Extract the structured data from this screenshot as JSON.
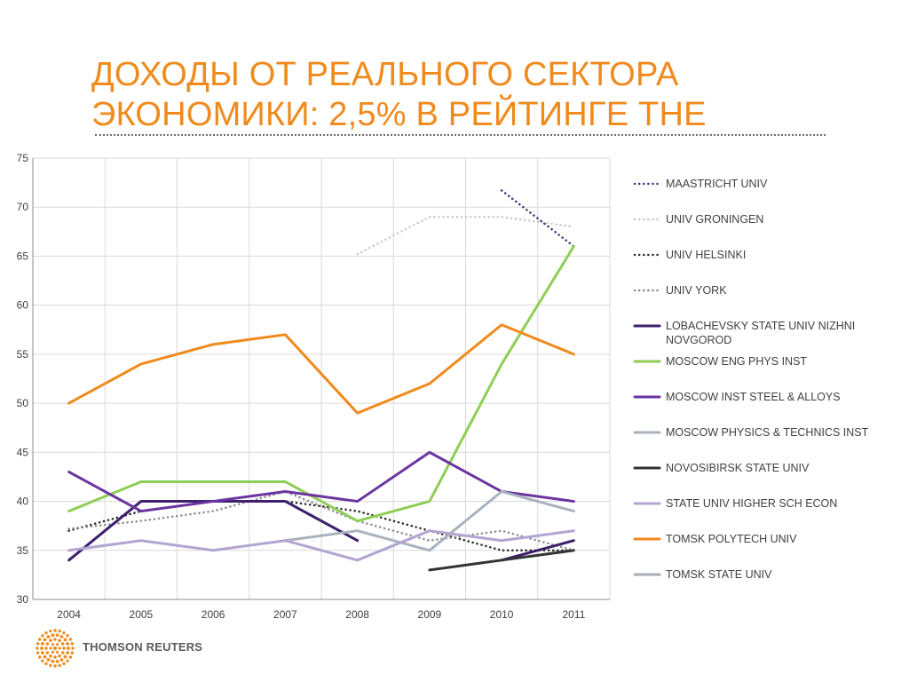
{
  "slide": {
    "title_line1": "ДОХОДЫ ОТ РЕАЛЬНОГО СЕКТОРА",
    "title_line2": "ЭКОНОМИКИ: 2,5% В РЕЙТИНГЕ THE",
    "logo_text": "THOMSON REUTERS",
    "accent_color": "#f08a1c"
  },
  "chart_data": {
    "type": "line",
    "title": "",
    "xlabel": "",
    "ylabel": "",
    "categories": [
      "2004",
      "2005",
      "2006",
      "2007",
      "2008",
      "2009",
      "2010",
      "2011"
    ],
    "ylim": [
      30,
      75
    ],
    "yticks": [
      30,
      35,
      40,
      45,
      50,
      55,
      60,
      65,
      70,
      75
    ],
    "grid": true,
    "legend_position": "right",
    "series": [
      {
        "name": "MAASTRICHT UNIV",
        "color": "#4b2a7a",
        "style": "dotted",
        "values": [
          null,
          null,
          null,
          null,
          null,
          null,
          71.7,
          66
        ]
      },
      {
        "name": "UNIV GRONINGEN",
        "color": "#c9c9c9",
        "style": "dotted",
        "values": [
          null,
          null,
          null,
          null,
          65.2,
          69,
          69,
          68
        ]
      },
      {
        "name": "UNIV HELSINKI",
        "color": "#262626",
        "style": "dotted",
        "values": [
          37,
          39,
          40,
          40,
          39,
          37,
          35,
          35
        ]
      },
      {
        "name": "UNIV YORK",
        "color": "#8a8a8a",
        "style": "dotted",
        "values": [
          37.2,
          38,
          39,
          41,
          38,
          36,
          37,
          35
        ]
      },
      {
        "name": "LOBACHEVSKY STATE UNIV NIZHNI NOVGOROD",
        "color": "#3d1f6b",
        "style": "solid",
        "values": [
          34,
          40,
          40,
          40,
          36,
          null,
          34,
          36
        ]
      },
      {
        "name": "MOSCOW ENG PHYS INST",
        "color": "#8fce55",
        "style": "solid",
        "values": [
          39,
          42,
          42,
          42,
          38,
          40,
          54,
          66
        ]
      },
      {
        "name": "MOSCOW INST STEEL & ALLOYS",
        "color": "#6a35a0",
        "style": "solid",
        "values": [
          43,
          39,
          40,
          41,
          40,
          45,
          41,
          40
        ]
      },
      {
        "name": "MOSCOW PHYSICS & TECHNICS INST",
        "color": "#a9b2bd",
        "style": "solid",
        "values": [
          null,
          null,
          null,
          36,
          37,
          35,
          41,
          39
        ]
      },
      {
        "name": "NOVOSIBIRSK STATE UNIV",
        "color": "#333333",
        "style": "solid",
        "values": [
          null,
          null,
          null,
          null,
          null,
          33,
          34,
          35
        ]
      },
      {
        "name": "STATE UNIV HIGHER SCH ECON",
        "color": "#b3a4d2",
        "style": "solid",
        "values": [
          35,
          36,
          35,
          36,
          34,
          37,
          36,
          37
        ]
      },
      {
        "name": "TOMSK POLYTECH UNIV",
        "color": "#f08a1c",
        "style": "solid",
        "values": [
          50,
          54,
          56,
          57,
          49,
          52,
          58,
          55
        ]
      },
      {
        "name": "TOMSK STATE UNIV",
        "color": "#a6adb8",
        "style": "solid",
        "values": [
          null,
          null,
          null,
          null,
          null,
          null,
          null,
          null
        ]
      }
    ]
  }
}
